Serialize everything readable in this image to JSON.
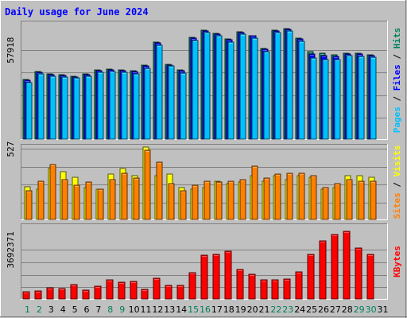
{
  "chart_data": {
    "type": "bar",
    "title": "Daily usage for June 2024",
    "days": [
      "1",
      "2",
      "3",
      "4",
      "5",
      "6",
      "7",
      "8",
      "9",
      "10",
      "11",
      "12",
      "13",
      "14",
      "15",
      "16",
      "17",
      "18",
      "19",
      "20",
      "21",
      "22",
      "23",
      "24",
      "25",
      "26",
      "27",
      "28",
      "29",
      "30",
      "31"
    ],
    "weekend_days": [
      "1",
      "2",
      "8",
      "9",
      "15",
      "16",
      "22",
      "23",
      "29",
      "30"
    ],
    "colors": {
      "hits": "#00805c",
      "files": "#0000ff",
      "pages": "#00c0ff",
      "visits": "#ffff00",
      "sites": "#ff8000",
      "kbytes": "#ff0000",
      "weekday": "#000000",
      "weekend": "#00805c"
    },
    "panels": [
      {
        "id": "hits",
        "tick_label": "57918",
        "tick_value": 57918,
        "ylim": [
          0,
          77000
        ],
        "legend": [
          {
            "text": "Pages",
            "color": "#00c0ff"
          },
          {
            "text": " / ",
            "color": "#000000"
          },
          {
            "text": "Files",
            "color": "#0000ff"
          },
          {
            "text": " / ",
            "color": "#000000"
          },
          {
            "text": "Hits",
            "color": "#00805c"
          }
        ],
        "series": [
          {
            "name": "Hits",
            "color": "#00805c",
            "values": [
              39000,
              44000,
              42500,
              42000,
              41000,
              42500,
              45000,
              45500,
              45000,
              44500,
              48000,
              63000,
              49000,
              45000,
              66000,
              71000,
              69000,
              65000,
              70000,
              67500,
              59000,
              71000,
              72000,
              65500,
              57000,
              56000,
              55000,
              56000,
              56000,
              55000,
              0
            ]
          },
          {
            "name": "Files",
            "color": "#0000ff",
            "values": [
              38500,
              43500,
              42000,
              41500,
              40500,
              42000,
              44500,
              45000,
              44500,
              44000,
              47500,
              62500,
              48500,
              44500,
              65500,
              70500,
              68500,
              64500,
              69500,
              67000,
              58500,
              70500,
              71500,
              65000,
              55500,
              54500,
              54000,
              55500,
              55500,
              54500,
              0
            ]
          },
          {
            "name": "Pages",
            "color": "#00c0ff",
            "values": [
              37000,
              42500,
              41000,
              40500,
              40000,
              41000,
              43500,
              44000,
              43500,
              42500,
              46000,
              61000,
              47500,
              43000,
              64000,
              69500,
              67500,
              63000,
              68500,
              65500,
              57000,
              69500,
              70500,
              63500,
              53000,
              52000,
              52000,
              54500,
              54000,
              53500,
              0
            ]
          }
        ]
      },
      {
        "id": "visits",
        "tick_label": "527",
        "tick_value": 527,
        "ylim": [
          0,
          565
        ],
        "legend": [
          {
            "text": "Sites",
            "color": "#ff8000"
          },
          {
            "text": " / ",
            "color": "#000000"
          },
          {
            "text": "Visits",
            "color": "#ffff00"
          }
        ],
        "series": [
          {
            "name": "Visits",
            "color": "#ffff00",
            "values": [
              250,
              230,
              385,
              360,
              320,
              240,
              230,
              340,
              380,
              330,
              540,
              330,
              340,
              240,
              230,
              240,
              290,
              270,
              280,
              330,
              290,
              330,
              300,
              330,
              320,
              230,
              240,
              330,
              330,
              320,
              0
            ]
          },
          {
            "name": "Sites",
            "color": "#ff8000",
            "values": [
              220,
              290,
              410,
              300,
              260,
              280,
              230,
              300,
              350,
              310,
              520,
              430,
              270,
              220,
              260,
              290,
              280,
              290,
              300,
              400,
              310,
              340,
              350,
              350,
              330,
              240,
              270,
              300,
              290,
              290,
              0
            ]
          }
        ]
      },
      {
        "id": "kbytes",
        "tick_label": "3692371",
        "tick_value": 3692371,
        "ylim": [
          0,
          5650000
        ],
        "legend": [
          {
            "text": "KBytes",
            "color": "#ff0000"
          }
        ],
        "series": [
          {
            "name": "KBytes",
            "color": "#ff0000",
            "values": [
              600000,
              650000,
              900000,
              850000,
              1100000,
              700000,
              1000000,
              1450000,
              1300000,
              1350000,
              750000,
              1600000,
              1050000,
              1050000,
              2000000,
              3300000,
              3350000,
              3600000,
              2250000,
              1900000,
              1450000,
              1500000,
              1550000,
              2050000,
              3350000,
              4350000,
              4800000,
              5050000,
              3800000,
              3350000,
              0
            ]
          }
        ]
      }
    ]
  }
}
